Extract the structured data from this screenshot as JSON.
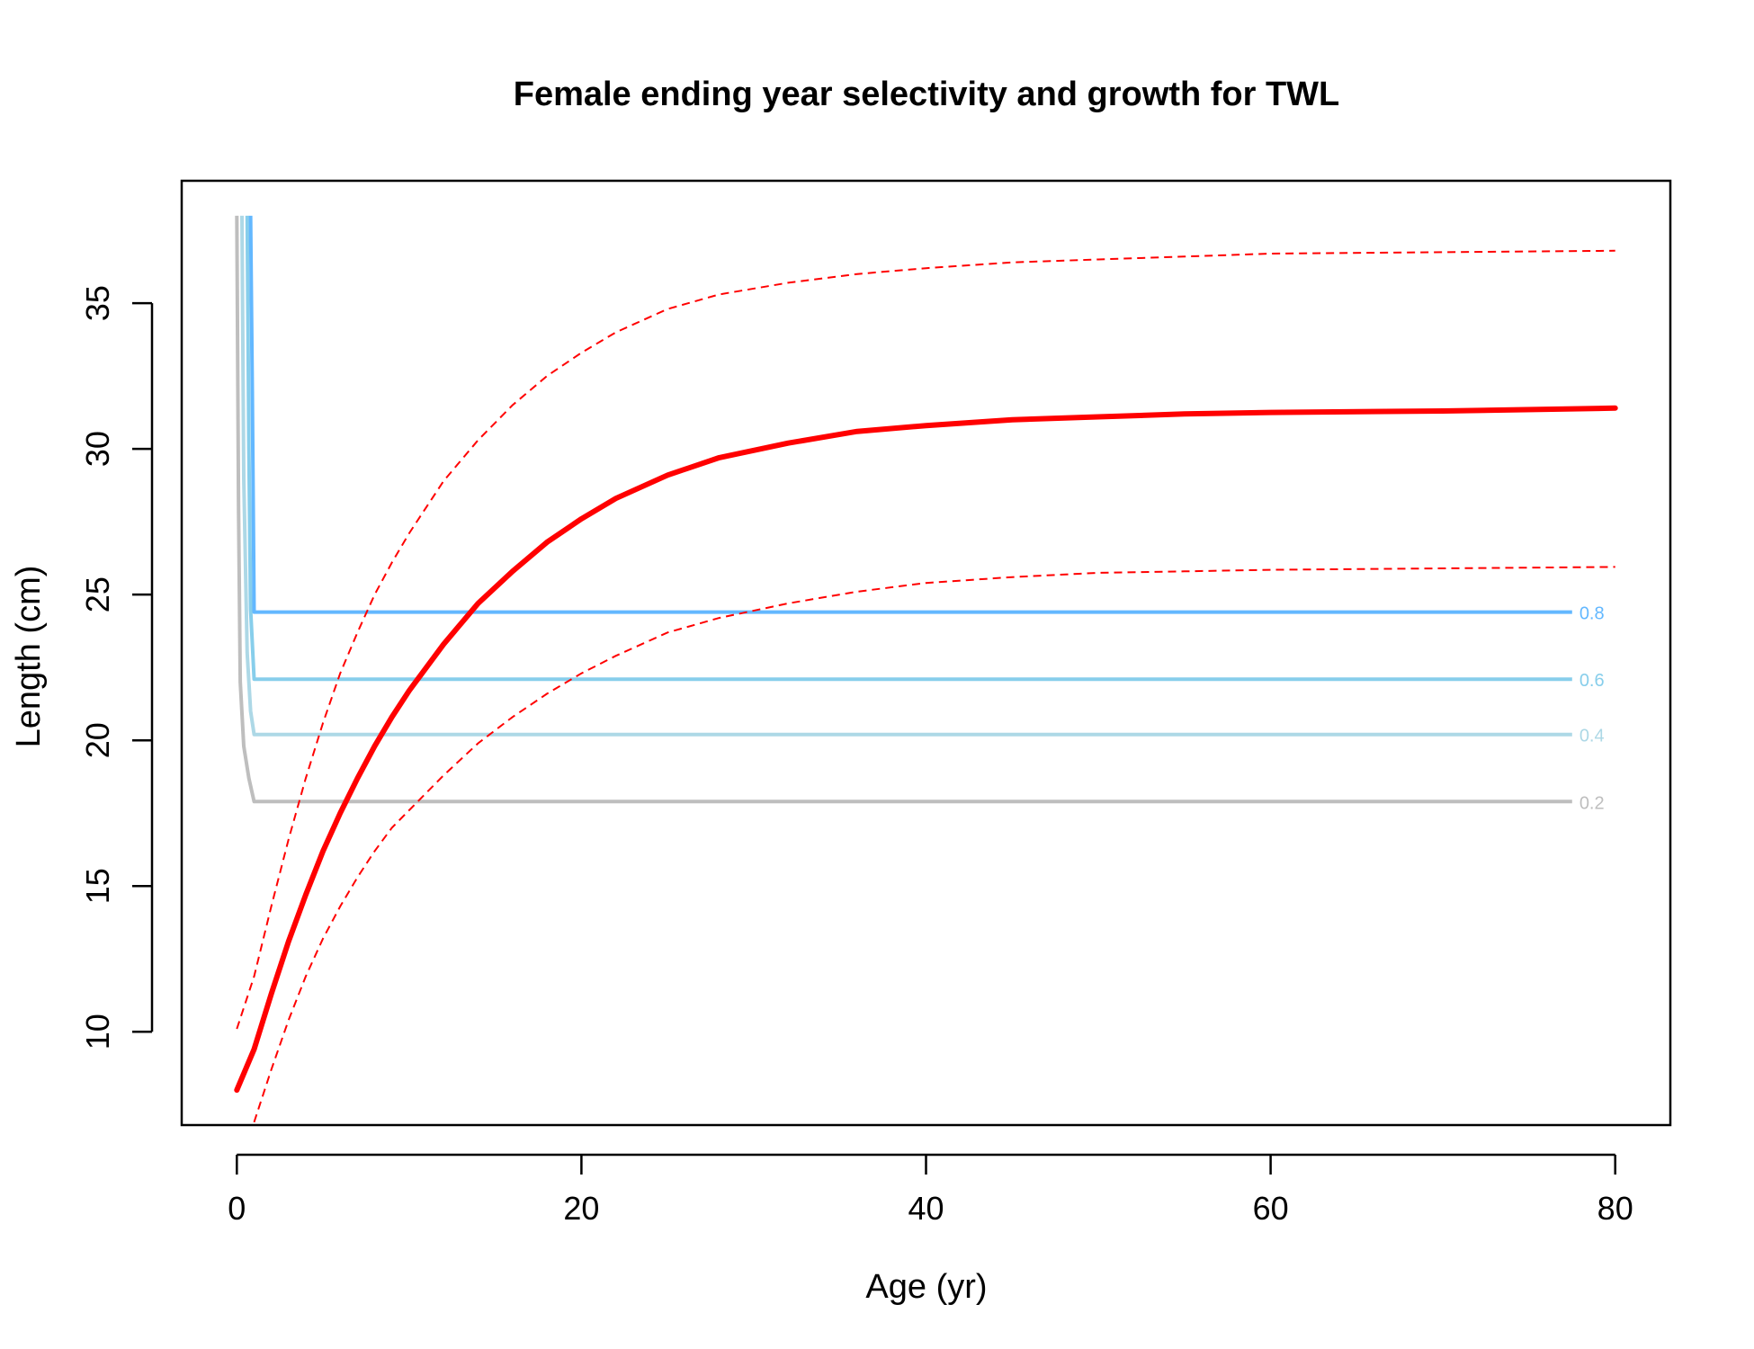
{
  "chart_data": {
    "type": "line",
    "title": "Female ending year selectivity and growth for TWL",
    "xlabel": "Age (yr)",
    "ylabel": "Length (cm)",
    "xlim": [
      -3.2,
      83.2
    ],
    "ylim": [
      6.8,
      39.2
    ],
    "x_ticks": [
      0,
      20,
      40,
      60,
      80
    ],
    "y_ticks": [
      10,
      15,
      20,
      25,
      30,
      35
    ],
    "grid": false,
    "legend": "none",
    "growth": {
      "color": "#ff0000",
      "mean": [
        [
          0,
          8.0
        ],
        [
          1,
          9.4
        ],
        [
          2,
          11.3
        ],
        [
          3,
          13.1
        ],
        [
          4,
          14.7
        ],
        [
          5,
          16.2
        ],
        [
          6,
          17.5
        ],
        [
          7,
          18.7
        ],
        [
          8,
          19.8
        ],
        [
          9,
          20.8
        ],
        [
          10,
          21.7
        ],
        [
          12,
          23.3
        ],
        [
          14,
          24.7
        ],
        [
          16,
          25.8
        ],
        [
          18,
          26.8
        ],
        [
          20,
          27.6
        ],
        [
          22,
          28.3
        ],
        [
          25,
          29.1
        ],
        [
          28,
          29.7
        ],
        [
          32,
          30.2
        ],
        [
          36,
          30.6
        ],
        [
          40,
          30.8
        ],
        [
          45,
          31.0
        ],
        [
          50,
          31.1
        ],
        [
          55,
          31.2
        ],
        [
          60,
          31.25
        ],
        [
          70,
          31.3
        ],
        [
          80,
          31.4
        ]
      ],
      "upper": [
        [
          0,
          10.1
        ],
        [
          1,
          11.9
        ],
        [
          2,
          14.3
        ],
        [
          3,
          16.6
        ],
        [
          4,
          18.7
        ],
        [
          5,
          20.6
        ],
        [
          6,
          22.3
        ],
        [
          7,
          23.7
        ],
        [
          8,
          25.0
        ],
        [
          9,
          26.1
        ],
        [
          10,
          27.1
        ],
        [
          12,
          28.9
        ],
        [
          14,
          30.3
        ],
        [
          16,
          31.5
        ],
        [
          18,
          32.5
        ],
        [
          20,
          33.3
        ],
        [
          22,
          34.0
        ],
        [
          25,
          34.8
        ],
        [
          28,
          35.3
        ],
        [
          32,
          35.7
        ],
        [
          36,
          36.0
        ],
        [
          40,
          36.2
        ],
        [
          45,
          36.4
        ],
        [
          50,
          36.5
        ],
        [
          55,
          36.6
        ],
        [
          60,
          36.7
        ],
        [
          70,
          36.75
        ],
        [
          80,
          36.8
        ]
      ],
      "lower": [
        [
          1,
          6.9
        ],
        [
          2,
          8.7
        ],
        [
          3,
          10.4
        ],
        [
          4,
          11.9
        ],
        [
          5,
          13.2
        ],
        [
          6,
          14.3
        ],
        [
          7,
          15.3
        ],
        [
          8,
          16.2
        ],
        [
          9,
          17.0
        ],
        [
          10,
          17.6
        ],
        [
          12,
          18.8
        ],
        [
          14,
          19.9
        ],
        [
          16,
          20.8
        ],
        [
          18,
          21.6
        ],
        [
          20,
          22.3
        ],
        [
          22,
          22.9
        ],
        [
          25,
          23.7
        ],
        [
          28,
          24.2
        ],
        [
          32,
          24.7
        ],
        [
          36,
          25.1
        ],
        [
          40,
          25.4
        ],
        [
          45,
          25.6
        ],
        [
          50,
          25.75
        ],
        [
          55,
          25.8
        ],
        [
          60,
          25.85
        ],
        [
          70,
          25.9
        ],
        [
          80,
          25.95
        ]
      ]
    },
    "selectivity_contours": [
      {
        "level": "0.2",
        "color": "#bebebe",
        "points": [
          [
            0,
            38.0
          ],
          [
            0.1,
            28.0
          ],
          [
            0.2,
            22.0
          ],
          [
            0.4,
            19.8
          ],
          [
            0.7,
            18.7
          ],
          [
            1,
            17.9
          ],
          [
            77.5,
            17.9
          ]
        ]
      },
      {
        "level": "0.4",
        "color": "#add8e6",
        "points": [
          [
            0.3,
            38.0
          ],
          [
            0.4,
            29.0
          ],
          [
            0.6,
            23.0
          ],
          [
            0.8,
            21.0
          ],
          [
            1,
            20.2
          ],
          [
            77.5,
            20.2
          ]
        ]
      },
      {
        "level": "0.6",
        "color": "#87ceeb",
        "points": [
          [
            0.6,
            38.0
          ],
          [
            0.7,
            30.0
          ],
          [
            0.8,
            24.5
          ],
          [
            1,
            22.1
          ],
          [
            77.5,
            22.1
          ]
        ]
      },
      {
        "level": "0.8",
        "color": "#63b8ff",
        "points": [
          [
            0.8,
            38.0
          ],
          [
            0.9,
            32.0
          ],
          [
            1,
            24.4
          ],
          [
            77.5,
            24.4
          ]
        ]
      }
    ]
  }
}
